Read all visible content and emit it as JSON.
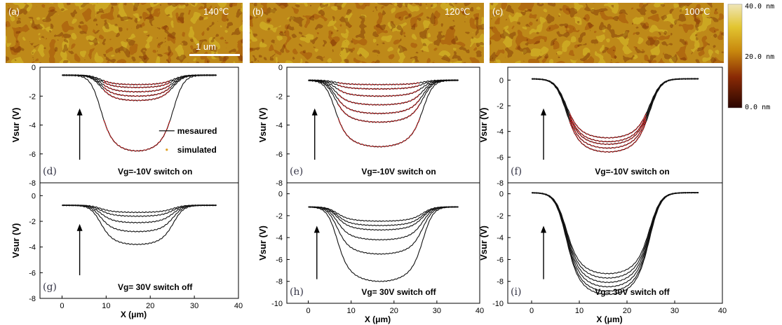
{
  "afm": {
    "panels": [
      {
        "label": "(a)",
        "temp": "140℃"
      },
      {
        "label": "(b)",
        "temp": "120℃"
      },
      {
        "label": "(c)",
        "temp": "100℃"
      }
    ],
    "scalebar": "1 um",
    "colorbar": {
      "max": "40.0 nm",
      "mid": "20.0 nm",
      "min": "0.0 nm",
      "colors": [
        "#2a0500",
        "#8a2a05",
        "#c8880e",
        "#e2c530",
        "#efe6b8"
      ]
    }
  },
  "chart_data": [
    {
      "id": "d",
      "type": "line",
      "label": "(d)",
      "caption": "Vg=-10V switch on",
      "ylabel": "Vsur (V)",
      "xlabel": "",
      "xlim": [
        -5,
        40
      ],
      "ylim": [
        -8,
        0
      ],
      "xticks": [],
      "yticks": [
        0,
        -2,
        -4,
        -6,
        -8
      ],
      "edges": [
        8.5,
        25.5
      ],
      "baseline": -0.55,
      "minima": [
        -1.2,
        -1.4,
        -1.7,
        -2.0,
        -2.3,
        -5.8
      ],
      "fit_count": 6,
      "legend": {
        "measured": "mesaured",
        "simulated": "simulated"
      }
    },
    {
      "id": "e",
      "type": "line",
      "label": "(e)",
      "caption": "Vg=-10V switch on",
      "ylabel": "Vsur (V)",
      "xlabel": "",
      "xlim": [
        -5,
        40
      ],
      "ylim": [
        -8,
        0
      ],
      "xticks": [],
      "yticks": [
        0,
        -2,
        -4,
        -6,
        -8
      ],
      "edges": [
        6,
        27
      ],
      "baseline": -0.9,
      "minima": [
        -1.2,
        -1.5,
        -2.0,
        -2.6,
        -3.2,
        -3.8,
        -5.5
      ],
      "fit_count": 7
    },
    {
      "id": "f",
      "type": "line",
      "label": "(f)",
      "caption": "Vg=-10V switch on",
      "ylabel": "Vsur (V)",
      "xlabel": "",
      "xlim": [
        -5,
        40
      ],
      "ylim": [
        -8,
        1
      ],
      "xticks": [],
      "yticks": [
        0,
        -2,
        -4,
        -6,
        -8
      ],
      "edges": [
        7,
        25
      ],
      "baseline": 0.1,
      "minima": [
        -4.5,
        -4.8,
        -5.0,
        -5.3,
        -5.6
      ],
      "fit_count": 5
    },
    {
      "id": "g",
      "type": "line",
      "label": "(g)",
      "caption": "Vg= 30V switch off",
      "ylabel": "Vsur (V)",
      "xlabel": "X (μm)",
      "xlim": [
        -5,
        40
      ],
      "ylim": [
        -8,
        1
      ],
      "xticks": [
        0,
        10,
        20,
        30,
        40
      ],
      "yticks": [
        0,
        -2,
        -4,
        -6,
        -8
      ],
      "edges": [
        8.5,
        25.5
      ],
      "baseline": -0.75,
      "minima": [
        -1.3,
        -1.6,
        -2.1,
        -2.8,
        -3.8
      ],
      "fit_count": 0
    },
    {
      "id": "h",
      "type": "line",
      "label": "(h)",
      "caption": "Vg= 30V switch off",
      "ylabel": "Vsur (V)",
      "xlabel": "X (μm)",
      "xlim": [
        -5,
        40
      ],
      "ylim": [
        -10,
        1
      ],
      "xticks": [
        0,
        10,
        20,
        30,
        40
      ],
      "yticks": [
        0,
        -2,
        -4,
        -6,
        -8,
        -10
      ],
      "edges": [
        6.5,
        27
      ],
      "baseline": -1.2,
      "minima": [
        -2.5,
        -2.9,
        -3.3,
        -4.2,
        -5.5,
        -8.0
      ],
      "fit_count": 0
    },
    {
      "id": "i",
      "type": "line",
      "label": "(i)",
      "caption": "Vg= 30V switch off",
      "ylabel": "Vsur (V)",
      "xlabel": "X (μm)",
      "xlim": [
        -5,
        40
      ],
      "ylim": [
        -10,
        1
      ],
      "xticks": [
        0,
        10,
        20,
        30,
        40
      ],
      "yticks": [
        0,
        -2,
        -4,
        -6,
        -8,
        -10
      ],
      "edges": [
        7,
        25
      ],
      "baseline": 0.1,
      "minima": [
        -7.3,
        -7.7,
        -8.1,
        -8.5,
        -8.9,
        -9.2
      ],
      "fit_count": 0
    }
  ]
}
